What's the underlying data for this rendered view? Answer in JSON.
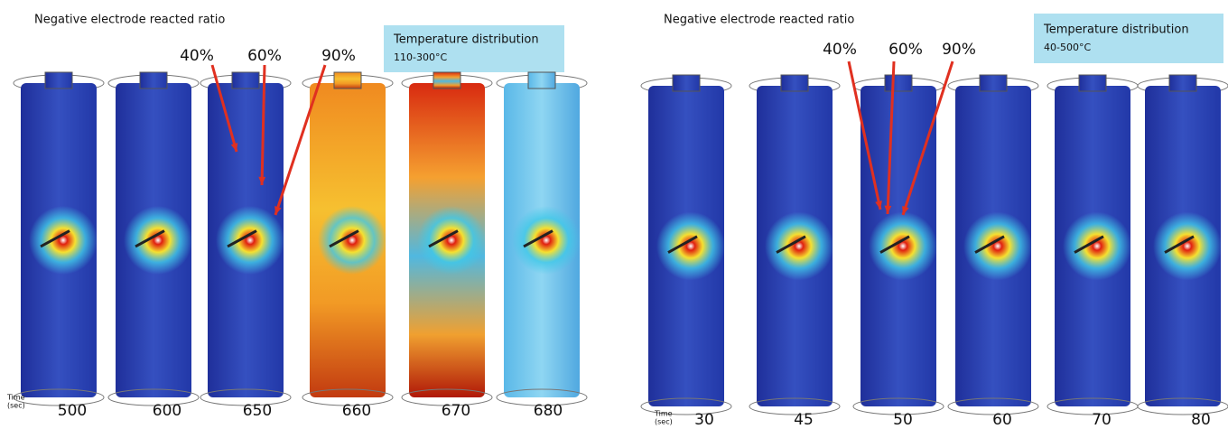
{
  "panels": [
    {
      "title": "Negative electrode reacted ratio",
      "info_box": {
        "title": "Temperature distribution",
        "range": "110-300°C"
      },
      "ratio_labels": [
        "40%",
        "60%",
        "90%"
      ],
      "time_label": "Time",
      "time_unit": "(sec)",
      "times": [
        500,
        600,
        650,
        660,
        670,
        680
      ]
    },
    {
      "title": "Negative electrode reacted ratio",
      "info_box": {
        "title": "Temperature distribution",
        "range": "40-500°C"
      },
      "ratio_labels": [
        "40%",
        "60%",
        "90%"
      ],
      "time_label": "Time",
      "time_unit": "(sec)",
      "times": [
        30,
        45,
        50,
        60,
        70,
        80
      ]
    }
  ]
}
